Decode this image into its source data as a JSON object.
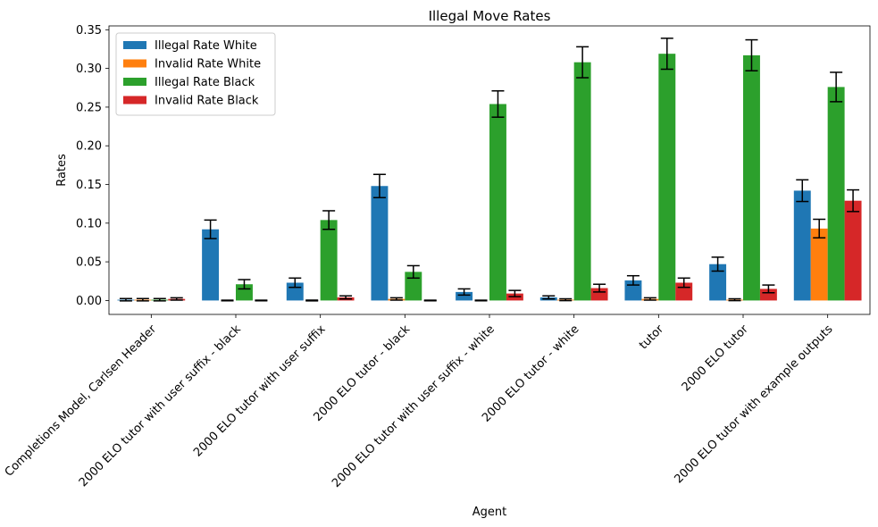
{
  "chart_data": {
    "type": "bar",
    "title": "Illegal Move Rates",
    "xlabel": "Agent",
    "ylabel": "Rates",
    "ylim": [
      -0.018,
      0.355
    ],
    "yticks": [
      "0.00",
      "0.05",
      "0.10",
      "0.15",
      "0.20",
      "0.25",
      "0.30",
      "0.35"
    ],
    "ytick_values": [
      0,
      0.05,
      0.1,
      0.15,
      0.2,
      0.25,
      0.3,
      0.35
    ],
    "legend_position": "top-left",
    "grid": false,
    "categories": [
      "Completions Model, Carlsen Header",
      "2000 ELO tutor with user suffix - black",
      "2000 ELO tutor with user suffix",
      "2000 ELO tutor - black",
      "2000 ELO tutor with user suffix - white",
      "2000 ELO tutor - white",
      "tutor",
      "2000 ELO tutor",
      "2000 ELO tutor with example outputs"
    ],
    "series": [
      {
        "name": "Illegal Rate White",
        "color": "#1f77b4",
        "values": [
          0.001,
          0.092,
          0.023,
          0.148,
          0.011,
          0.004,
          0.026,
          0.047,
          0.142
        ],
        "errors": [
          0.0015,
          0.012,
          0.006,
          0.015,
          0.004,
          0.002,
          0.006,
          0.009,
          0.014
        ]
      },
      {
        "name": "Invalid Rate White",
        "color": "#ff7f0e",
        "values": [
          0.001,
          0.0,
          0.0,
          0.002,
          0.0,
          0.001,
          0.002,
          0.001,
          0.093
        ],
        "errors": [
          0.0015,
          0.0004,
          0.0005,
          0.0015,
          0.0004,
          0.0012,
          0.0015,
          0.0012,
          0.012
        ]
      },
      {
        "name": "Illegal Rate Black",
        "color": "#2ca02c",
        "values": [
          0.001,
          0.021,
          0.104,
          0.037,
          0.254,
          0.308,
          0.319,
          0.317,
          0.276
        ],
        "errors": [
          0.0015,
          0.006,
          0.012,
          0.008,
          0.017,
          0.02,
          0.02,
          0.02,
          0.019
        ]
      },
      {
        "name": "Invalid Rate Black",
        "color": "#d62728",
        "values": [
          0.002,
          0.0,
          0.004,
          0.0,
          0.009,
          0.016,
          0.023,
          0.015,
          0.129
        ],
        "errors": [
          0.0015,
          0.0004,
          0.002,
          0.0004,
          0.004,
          0.005,
          0.006,
          0.005,
          0.014
        ]
      }
    ]
  }
}
